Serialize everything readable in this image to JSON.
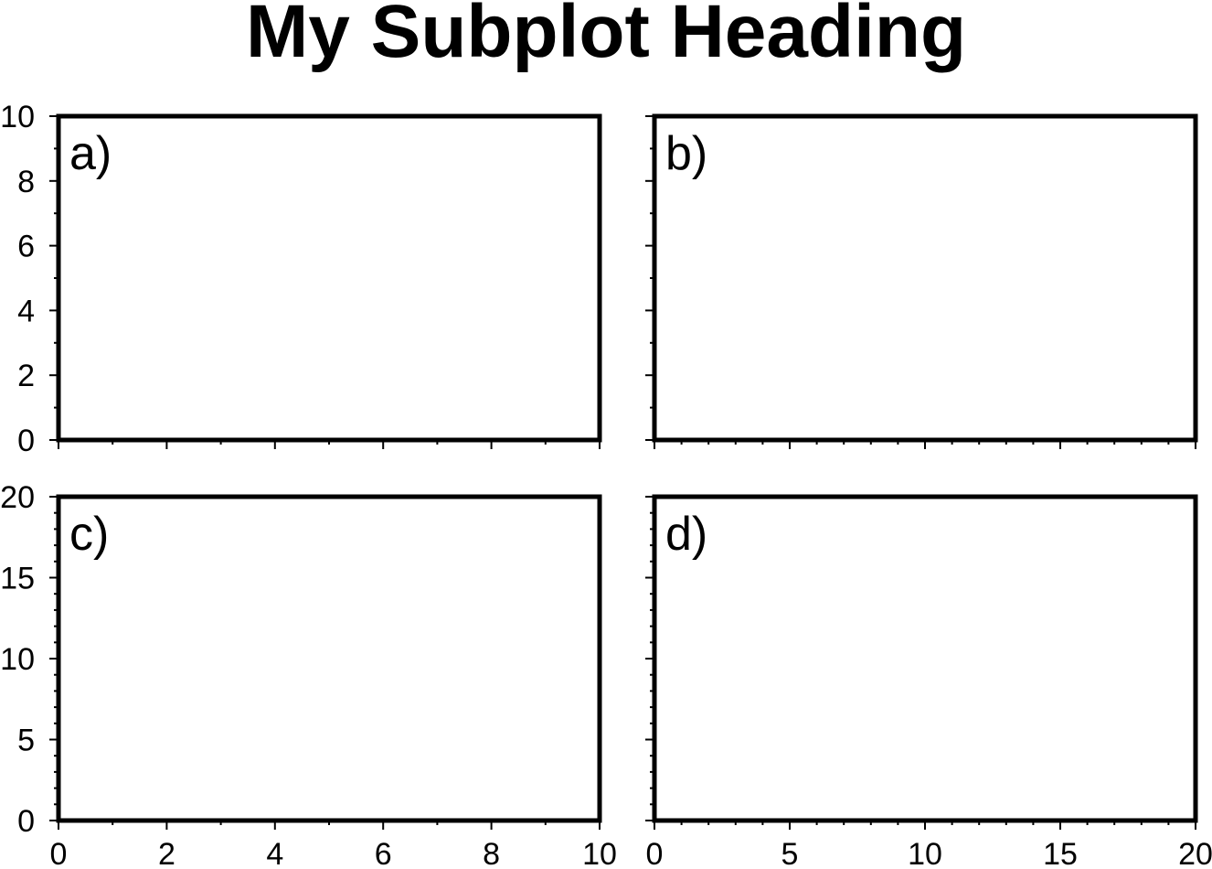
{
  "figure": {
    "heading": "My Subplot Heading"
  },
  "chart_data": [
    {
      "type": "scatter",
      "panel_tag": "a)",
      "title": "",
      "xlabel": "",
      "ylabel": "",
      "xlim": [
        0,
        10
      ],
      "ylim": [
        0,
        10
      ],
      "x_ticks": [
        0,
        2,
        4,
        6,
        8,
        10
      ],
      "x_minor_step": 1,
      "y_ticks": [
        0,
        2,
        4,
        6,
        8,
        10
      ],
      "y_minor_step": 1,
      "show_x_tick_labels": false,
      "show_y_tick_labels": true,
      "grid": false,
      "series": []
    },
    {
      "type": "scatter",
      "panel_tag": "b)",
      "title": "",
      "xlabel": "",
      "ylabel": "",
      "xlim": [
        0,
        20
      ],
      "ylim": [
        0,
        10
      ],
      "x_ticks": [
        0,
        5,
        10,
        15,
        20
      ],
      "x_minor_step": 1,
      "y_ticks": [
        0,
        2,
        4,
        6,
        8,
        10
      ],
      "y_minor_step": 1,
      "show_x_tick_labels": false,
      "show_y_tick_labels": false,
      "grid": false,
      "series": []
    },
    {
      "type": "scatter",
      "panel_tag": "c)",
      "title": "",
      "xlabel": "",
      "ylabel": "",
      "xlim": [
        0,
        10
      ],
      "ylim": [
        0,
        20
      ],
      "x_ticks": [
        0,
        2,
        4,
        6,
        8,
        10
      ],
      "x_minor_step": 1,
      "y_ticks": [
        0,
        5,
        10,
        15,
        20
      ],
      "y_minor_step": 1,
      "show_x_tick_labels": true,
      "show_y_tick_labels": true,
      "grid": false,
      "series": []
    },
    {
      "type": "scatter",
      "panel_tag": "d)",
      "title": "",
      "xlabel": "",
      "ylabel": "",
      "xlim": [
        0,
        20
      ],
      "ylim": [
        0,
        20
      ],
      "x_ticks": [
        0,
        5,
        10,
        15,
        20
      ],
      "x_minor_step": 1,
      "y_ticks": [
        0,
        5,
        10,
        15,
        20
      ],
      "y_minor_step": 1,
      "show_x_tick_labels": true,
      "show_y_tick_labels": false,
      "grid": false,
      "series": []
    }
  ]
}
